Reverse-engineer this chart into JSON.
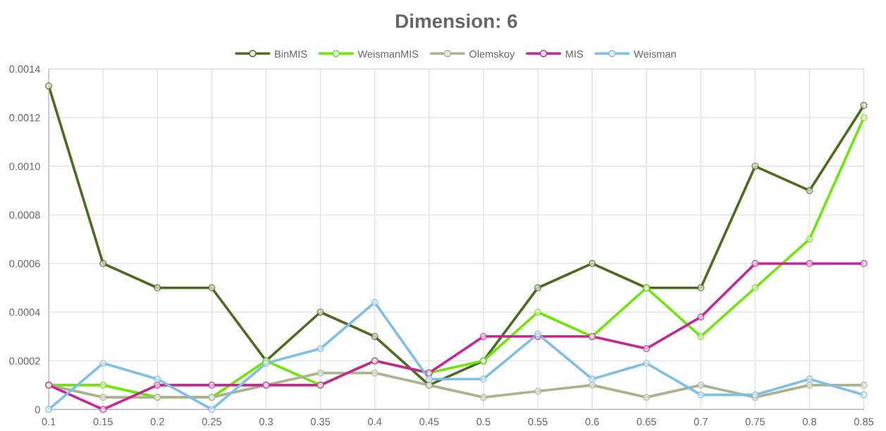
{
  "chart_data": {
    "type": "line",
    "title": "Dimension: 6",
    "categories": [
      "0.1",
      "0.15",
      "0.2",
      "0.25",
      "0.3",
      "0.35",
      "0.4",
      "0.45",
      "0.5",
      "0.55",
      "0.6",
      "0.65",
      "0.7",
      "0.75",
      "0.8",
      "0.85"
    ],
    "series": [
      {
        "name": "BinMIS",
        "color": "#4e6b1f",
        "values": [
          0.00133,
          0.0006,
          0.0005,
          0.0005,
          0.0002,
          0.0004,
          0.0003,
          0.0001,
          0.0002,
          0.0005,
          0.0006,
          0.0005,
          0.0005,
          0.001,
          0.0009,
          0.00125
        ]
      },
      {
        "name": "WeismanMIS",
        "color": "#6ee60a",
        "values": [
          0.0001,
          0.0001,
          5e-05,
          5e-05,
          0.0002,
          0.0001,
          0.0002,
          0.00015,
          0.0002,
          0.0004,
          0.0003,
          0.0005,
          0.0003,
          0.0005,
          0.0007,
          0.0012
        ]
      },
      {
        "name": "Olemskoy",
        "color": "#aab38c",
        "values": [
          0.0001,
          5e-05,
          5e-05,
          5e-05,
          0.0001,
          0.00015,
          0.00015,
          0.0001,
          5e-05,
          7.5e-05,
          0.0001,
          5e-05,
          0.0001,
          5e-05,
          0.0001,
          0.0001
        ]
      },
      {
        "name": "MIS",
        "color": "#c8259a",
        "values": [
          0.0001,
          0,
          0.0001,
          0.0001,
          0.0001,
          0.0001,
          0.0002,
          0.00015,
          0.0003,
          0.0003,
          0.0003,
          0.00025,
          0.00038,
          0.0006,
          0.0006,
          0.0006
        ]
      },
      {
        "name": "Weisman",
        "color": "#7fbfe6",
        "values": [
          0,
          0.00019,
          0.000125,
          0,
          0.00019,
          0.00025,
          0.00044,
          0.000125,
          0.000125,
          0.00031,
          0.000125,
          0.00019,
          6e-05,
          6e-05,
          0.000125,
          6e-05
        ]
      }
    ],
    "ylim": [
      0,
      0.0014
    ],
    "yticks": [
      0,
      0.0002,
      0.0004,
      0.0006,
      0.0008,
      {
        "value": 0.001,
        "label": "0.0010"
      },
      0.0012,
      0.0014
    ],
    "grid": true,
    "legend": "top",
    "marker": "circle"
  }
}
